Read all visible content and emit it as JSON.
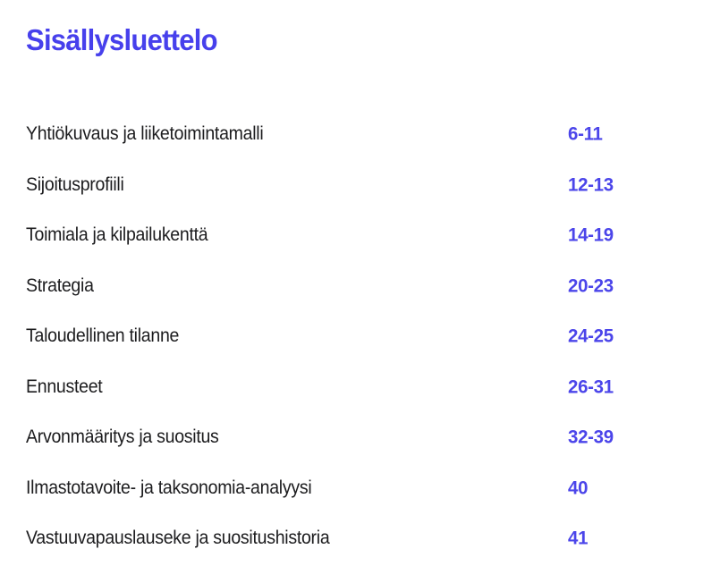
{
  "page": {
    "title": "Sisällysluettelo",
    "accent_color": "#4740ec",
    "text_color": "#1c1c1e",
    "background_color": "#ffffff"
  },
  "toc": {
    "items": [
      {
        "label": "Yhtiökuvaus ja liiketoimintamalli",
        "pages": "6-11"
      },
      {
        "label": "Sijoitusprofiili",
        "pages": "12-13"
      },
      {
        "label": "Toimiala ja kilpailukenttä",
        "pages": "14-19"
      },
      {
        "label": "Strategia",
        "pages": "20-23"
      },
      {
        "label": "Taloudellinen tilanne",
        "pages": "24-25"
      },
      {
        "label": "Ennusteet",
        "pages": "26-31"
      },
      {
        "label": "Arvonmääritys ja suositus",
        "pages": "32-39"
      },
      {
        "label": "Ilmastotavoite- ja taksonomia-analyysi",
        "pages": "40"
      },
      {
        "label": "Vastuuvapauslauseke ja suositushistoria",
        "pages": "41"
      }
    ]
  }
}
